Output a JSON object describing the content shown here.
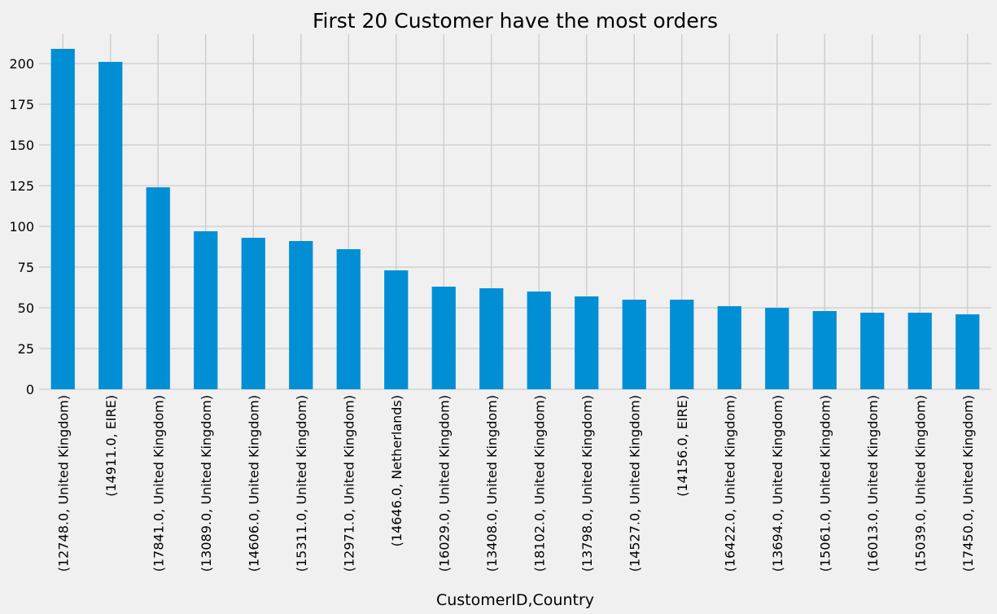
{
  "chart_data": {
    "type": "bar",
    "title": "First 20 Customer have the most orders",
    "xlabel": "CustomerID,Country",
    "ylabel": "",
    "ylim": [
      0,
      218
    ],
    "yticks": [
      0,
      25,
      50,
      75,
      100,
      125,
      150,
      175,
      200
    ],
    "grid": true,
    "categories": [
      "(12748.0, United Kingdom)",
      "(14911.0, EIRE)",
      "(17841.0, United Kingdom)",
      "(13089.0, United Kingdom)",
      "(14606.0, United Kingdom)",
      "(15311.0, United Kingdom)",
      "(12971.0, United Kingdom)",
      "(14646.0, Netherlands)",
      "(16029.0, United Kingdom)",
      "(13408.0, United Kingdom)",
      "(18102.0, United Kingdom)",
      "(13798.0, United Kingdom)",
      "(14527.0, United Kingdom)",
      "(14156.0, EIRE)",
      "(16422.0, United Kingdom)",
      "(13694.0, United Kingdom)",
      "(15061.0, United Kingdom)",
      "(16013.0, United Kingdom)",
      "(15039.0, United Kingdom)",
      "(17450.0, United Kingdom)"
    ],
    "values": [
      209,
      201,
      124,
      97,
      93,
      91,
      86,
      73,
      63,
      62,
      60,
      57,
      55,
      55,
      51,
      50,
      48,
      47,
      47,
      46
    ],
    "colors": {
      "bar": "#008fd5",
      "background": "#f0f0f0",
      "grid": "#cbcbcb"
    }
  }
}
